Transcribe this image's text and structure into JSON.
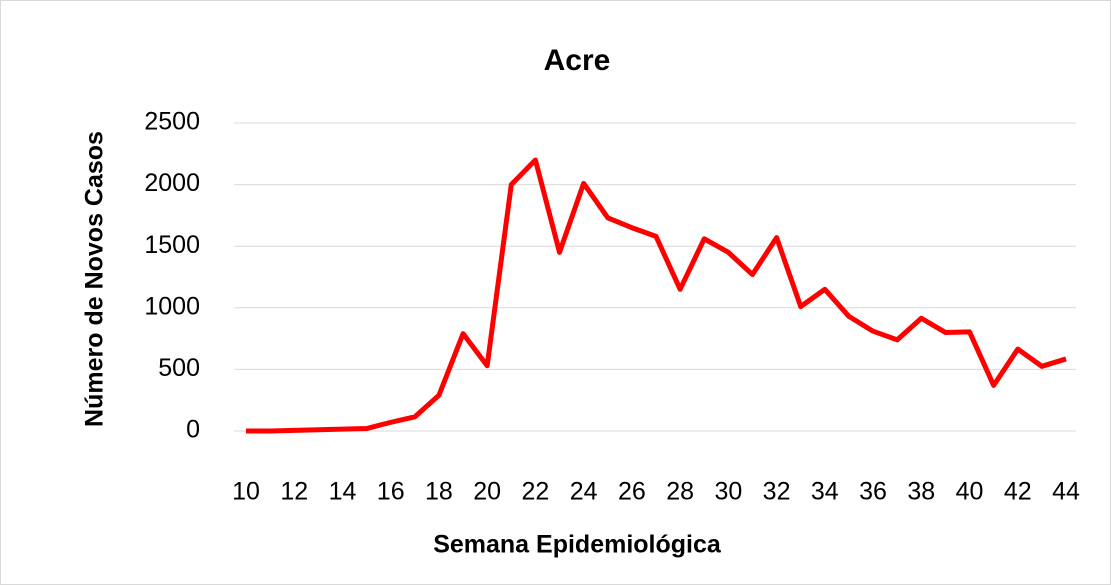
{
  "chart_data": {
    "type": "line",
    "title": "Acre",
    "x_label": "Semana Epidemiológica",
    "y_label": "Número de Novos Casos",
    "x": [
      10,
      11,
      12,
      13,
      14,
      15,
      16,
      17,
      18,
      19,
      20,
      21,
      22,
      23,
      24,
      25,
      26,
      27,
      28,
      29,
      30,
      31,
      32,
      33,
      34,
      35,
      36,
      37,
      38,
      39,
      40,
      41,
      42,
      43,
      44
    ],
    "series": [
      {
        "name": "Acre",
        "color": "#ff0000",
        "values": [
          0,
          0,
          5,
          10,
          15,
          20,
          70,
          115,
          290,
          790,
          530,
          2000,
          2200,
          1450,
          2010,
          1730,
          1650,
          1580,
          1150,
          1560,
          1450,
          1270,
          1570,
          1010,
          1150,
          930,
          810,
          740,
          915,
          800,
          805,
          370,
          665,
          525,
          585
        ]
      }
    ],
    "xlim": [
      10,
      44
    ],
    "xticks": [
      10,
      12,
      14,
      16,
      18,
      20,
      22,
      24,
      26,
      28,
      30,
      32,
      34,
      36,
      38,
      40,
      42,
      44
    ],
    "ylim": [
      0,
      2500
    ],
    "yticks": [
      0,
      500,
      1000,
      1500,
      2000,
      2500
    ],
    "grid": true
  }
}
